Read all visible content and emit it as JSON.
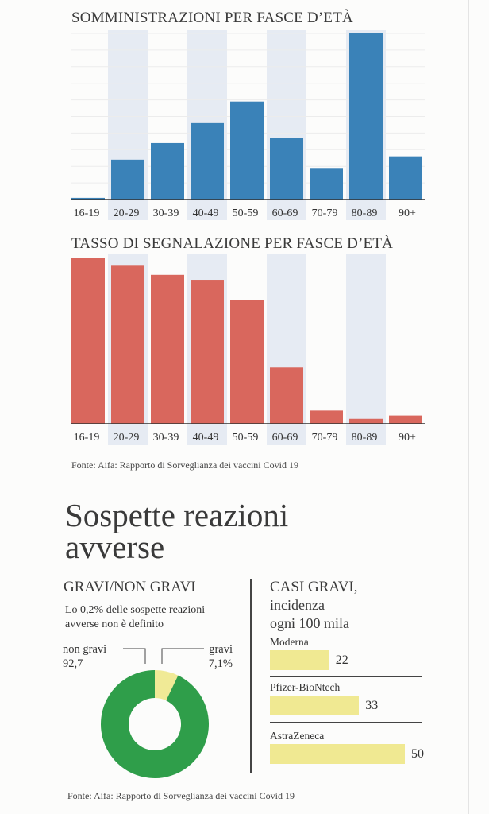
{
  "chart_data": [
    {
      "type": "bar",
      "title": "SOMMINISTRAZIONI PER FASCE D’ETÀ",
      "categories": [
        "16-19",
        "20-29",
        "30-39",
        "40-49",
        "50-59",
        "60-69",
        "70-79",
        "80-89",
        "90+"
      ],
      "values": [
        1,
        24,
        34,
        46,
        59,
        37,
        19,
        100,
        26
      ],
      "units": "relative (max = 100), no axis values shown",
      "ylim": [
        0,
        100
      ],
      "grid": true,
      "color": "#3a82b8"
    },
    {
      "type": "bar",
      "title": "TASSO DI SEGNALAZIONE PER FASCE D’ETÀ",
      "categories": [
        "16-19",
        "20-29",
        "30-39",
        "40-49",
        "50-59",
        "60-69",
        "70-79",
        "80-89",
        "90+"
      ],
      "values": [
        100,
        96,
        90,
        87,
        75,
        34,
        8,
        3,
        5
      ],
      "units": "relative (max = 100), no axis values shown",
      "ylim": [
        0,
        100
      ],
      "grid": false,
      "color": "#d9675d"
    },
    {
      "type": "pie",
      "title": "GRAVI/NON GRAVI",
      "slices": [
        {
          "label": "gravi",
          "value": 7.1,
          "display": "7,1%",
          "color": "#f0ea96"
        },
        {
          "label": "non gravi",
          "value": 92.7,
          "display": "92,7",
          "color": "#2f9e4a"
        }
      ]
    },
    {
      "type": "bar",
      "orientation": "horizontal",
      "title": "CASI GRAVI,",
      "subtitle_lines": [
        "incidenza",
        "ogni 100 mila"
      ],
      "categories": [
        "Moderna",
        "Pfizer-BioNtech",
        "AstraZeneca"
      ],
      "values": [
        22,
        33,
        50
      ],
      "color": "#f0e992"
    }
  ],
  "source1": "Fonte: Aifa: Rapporto di Sorveglianza dei vaccini Covid 19",
  "headline": [
    "Sospette reazioni",
    "avverse"
  ],
  "note": [
    "Lo 0,2% delle sospette reazioni",
    "avverse non è definito"
  ],
  "source2": "Fonte: Aifa: Rapporto di Sorveglianza dei vaccini Covid 19"
}
